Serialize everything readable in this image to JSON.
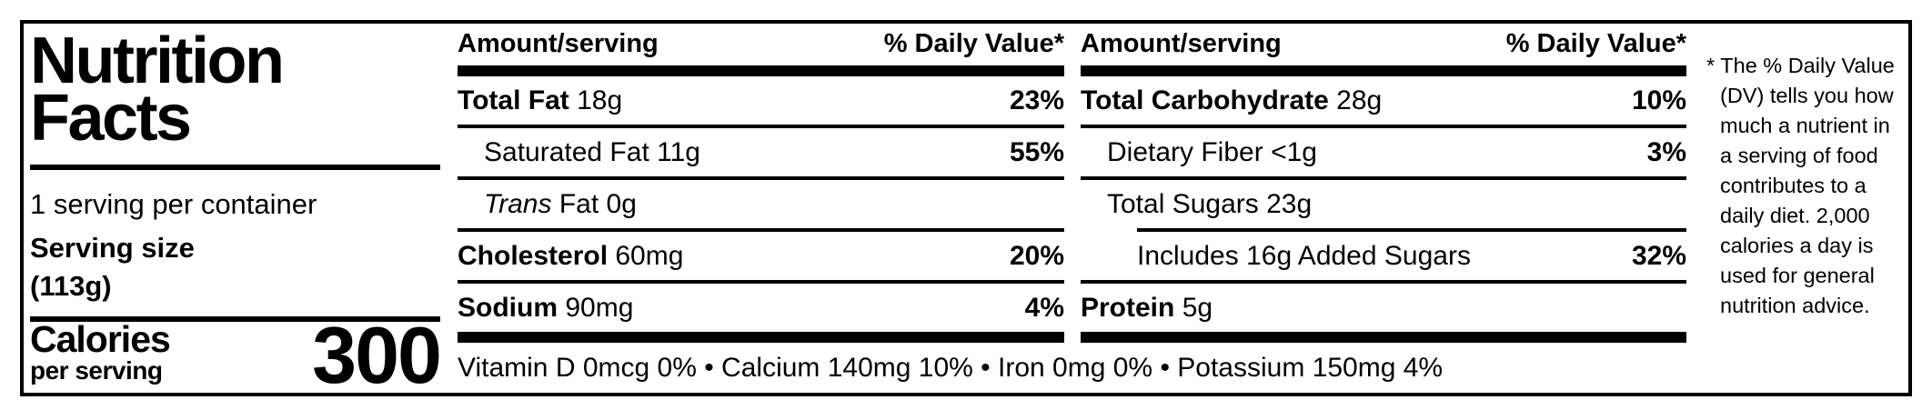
{
  "title_line1": "Nutrition",
  "title_line2": "Facts",
  "serving": {
    "per_container": "1 serving per container",
    "size_label": "Serving size",
    "size_value": "(113g)"
  },
  "calories": {
    "label": "Calories",
    "sublabel": "per serving",
    "value": "300"
  },
  "columns": [
    {
      "header_amount": "Amount/serving",
      "header_dv": "% Daily Value*",
      "rows": [
        {
          "name": "Total Fat",
          "amount": "18g",
          "dv": "23%"
        },
        {
          "name": "Saturated Fat",
          "amount": "11g",
          "dv": "55%"
        },
        {
          "name_italic": "Trans",
          "name": "Fat",
          "amount": "0g",
          "dv": ""
        },
        {
          "name": "Cholesterol",
          "amount": "60mg",
          "dv": "20%"
        },
        {
          "name": "Sodium",
          "amount": "90mg",
          "dv": "4%"
        }
      ]
    },
    {
      "header_amount": "Amount/serving",
      "header_dv": "% Daily Value*",
      "rows": [
        {
          "name": "Total Carbohydrate",
          "amount": "28g",
          "dv": "10%"
        },
        {
          "name": "Dietary Fiber",
          "amount": "<1g",
          "dv": "3%"
        },
        {
          "name": "Total Sugars",
          "amount": "23g",
          "dv": ""
        },
        {
          "name": "Includes 16g Added Sugars",
          "amount": "",
          "dv": "32%"
        },
        {
          "name": "Protein",
          "amount": "5g",
          "dv": ""
        }
      ]
    }
  ],
  "vitamins_line": "Vitamin D 0mcg 0% • Calcium 140mg 10% • Iron 0mg 0% • Potassium 150mg 4%",
  "footnote": {
    "marker": "*",
    "text": "The % Daily Value (DV) tells you how much a nutrient in a serving of food contributes to a daily diet. 2,000 calories a day is used for general nutrition advice."
  },
  "colors": {
    "ink": "#000000",
    "background": "#ffffff"
  }
}
